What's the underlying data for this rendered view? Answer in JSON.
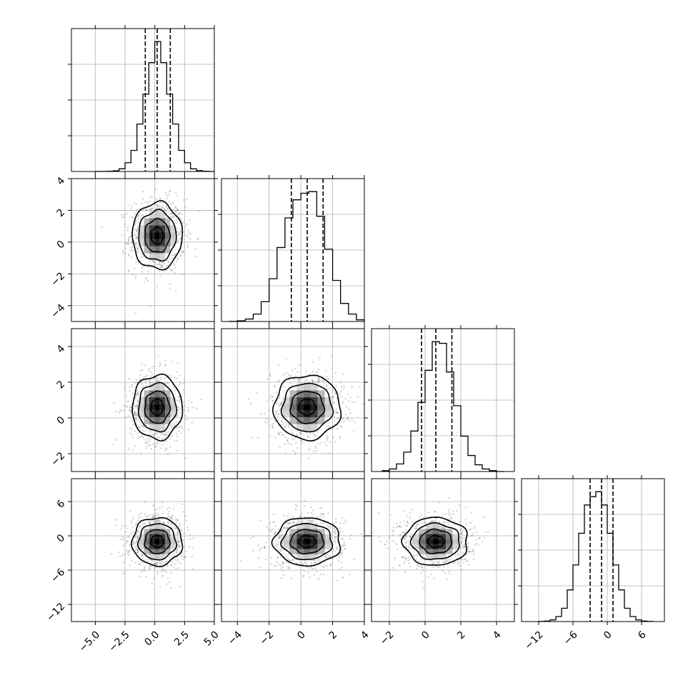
{
  "chart_data": {
    "type": "corner",
    "n_params": 4,
    "grid": true,
    "colors": {
      "hist": "#000000",
      "grid": "#b0b0b0",
      "density_dark": "#000000",
      "scatter": "#7f7f7f"
    },
    "quantile_levels": [
      0.16,
      0.5,
      0.84
    ],
    "params": [
      {
        "range": [
          -7.0,
          5.0
        ],
        "ticks": [
          -5.0,
          -2.5,
          0.0,
          2.5,
          5.0
        ],
        "tick_labels": [
          "−5.0",
          "−2.5",
          "0.0",
          "2.5",
          "5.0"
        ],
        "mean": 0.2,
        "sd": 1.05,
        "quantiles": [
          -0.8,
          0.2,
          1.3
        ],
        "hist": {
          "edges": [
            -5.0,
            -4.5,
            -4.0,
            -3.5,
            -3.0,
            -2.5,
            -2.0,
            -1.5,
            -1.0,
            -0.5,
            0.0,
            0.5,
            1.0,
            1.5,
            2.0,
            2.5,
            3.0,
            3.5,
            4.0,
            4.5,
            5.0
          ],
          "counts": [
            0,
            1,
            3,
            8,
            30,
            100,
            240,
            540,
            880,
            1240,
            1480,
            1240,
            880,
            540,
            240,
            100,
            30,
            10,
            3,
            0
          ]
        }
      },
      {
        "range": [
          -5.0,
          4.0
        ],
        "ticks": [
          -4,
          -2,
          0,
          2,
          4
        ],
        "tick_labels": [
          "−4",
          "−2",
          "0",
          "2",
          "4"
        ],
        "mean": 0.4,
        "sd": 1.05,
        "quantiles": [
          -0.6,
          0.4,
          1.4
        ],
        "hist": {
          "edges": [
            -4.5,
            -4.0,
            -3.5,
            -3.0,
            -2.5,
            -2.0,
            -1.5,
            -1.0,
            -0.5,
            0.0,
            0.5,
            1.0,
            1.5,
            2.0,
            2.5,
            3.0,
            3.5,
            4.0
          ],
          "counts": [
            2,
            8,
            30,
            90,
            240,
            520,
            900,
            1260,
            1480,
            1560,
            1580,
            1280,
            880,
            500,
            220,
            90,
            20
          ]
        }
      },
      {
        "range": [
          -3.0,
          5.0
        ],
        "ticks": [
          -2,
          0,
          2,
          4
        ],
        "tick_labels": [
          "−2",
          "0",
          "2",
          "4"
        ],
        "mean": 0.6,
        "sd": 0.9,
        "quantiles": [
          -0.2,
          0.6,
          1.5
        ],
        "hist": {
          "edges": [
            -2.4,
            -2.0,
            -1.6,
            -1.2,
            -0.8,
            -0.4,
            0.0,
            0.4,
            0.8,
            1.2,
            1.6,
            2.0,
            2.4,
            2.8,
            3.2,
            3.6,
            4.0,
            4.4
          ],
          "counts": [
            10,
            30,
            90,
            230,
            480,
            820,
            1200,
            1540,
            1520,
            1180,
            780,
            420,
            190,
            80,
            30,
            10,
            0
          ]
        }
      },
      {
        "range": [
          -15.0,
          10.0
        ],
        "ticks": [
          -12,
          -6,
          0,
          6
        ],
        "tick_labels": [
          "−12",
          "−6",
          "0",
          "6"
        ],
        "mean": -1.0,
        "sd": 2.1,
        "quantiles": [
          -3.0,
          -1.0,
          1.0
        ],
        "hist": {
          "edges": [
            -12,
            -11,
            -10,
            -9,
            -8,
            -7,
            -6,
            -5,
            -4,
            -3,
            -2,
            -1,
            0,
            1,
            2,
            3,
            4,
            5,
            6,
            7,
            8
          ],
          "counts": [
            2,
            6,
            20,
            60,
            160,
            380,
            680,
            1060,
            1400,
            1500,
            1560,
            1400,
            1060,
            680,
            380,
            160,
            60,
            20,
            6,
            2
          ]
        }
      }
    ],
    "density_levels": [
      0.12,
      0.28,
      0.5,
      0.75
    ]
  }
}
